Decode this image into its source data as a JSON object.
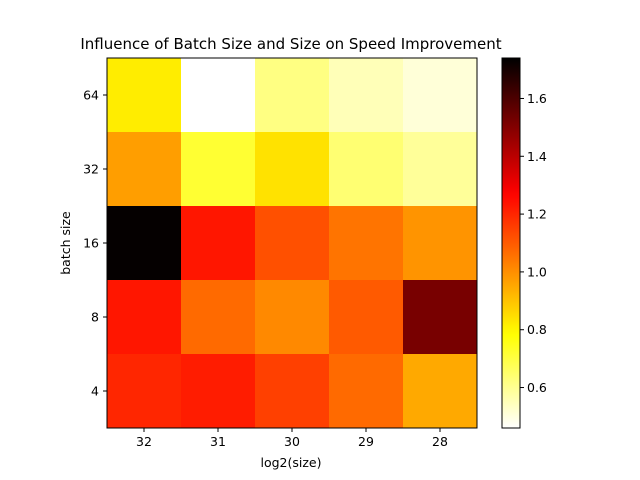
{
  "chart_data": {
    "type": "heatmap",
    "title": "Influence of Batch Size and Size on Speed Improvement",
    "xlabel": "log2(size)",
    "ylabel": "batch size",
    "x_categories": [
      "32",
      "31",
      "30",
      "29",
      "28"
    ],
    "y_categories": [
      "64",
      "32",
      "16",
      "8",
      "4"
    ],
    "values": [
      [
        0.82,
        0.46,
        0.62,
        0.55,
        0.51
      ],
      [
        0.97,
        0.72,
        0.84,
        0.64,
        0.59
      ],
      [
        1.73,
        1.23,
        1.12,
        1.05,
        0.99
      ],
      [
        1.23,
        1.07,
        1.01,
        1.1,
        1.52
      ],
      [
        1.2,
        1.22,
        1.15,
        1.07,
        0.95
      ]
    ],
    "colormap": "hot_r",
    "vmin": 0.46,
    "vmax": 1.74,
    "colorbar_ticks": [
      "0.6",
      "0.8",
      "1.0",
      "1.2",
      "1.4",
      "1.6"
    ],
    "grid": false,
    "legend": "colorbar-right"
  }
}
